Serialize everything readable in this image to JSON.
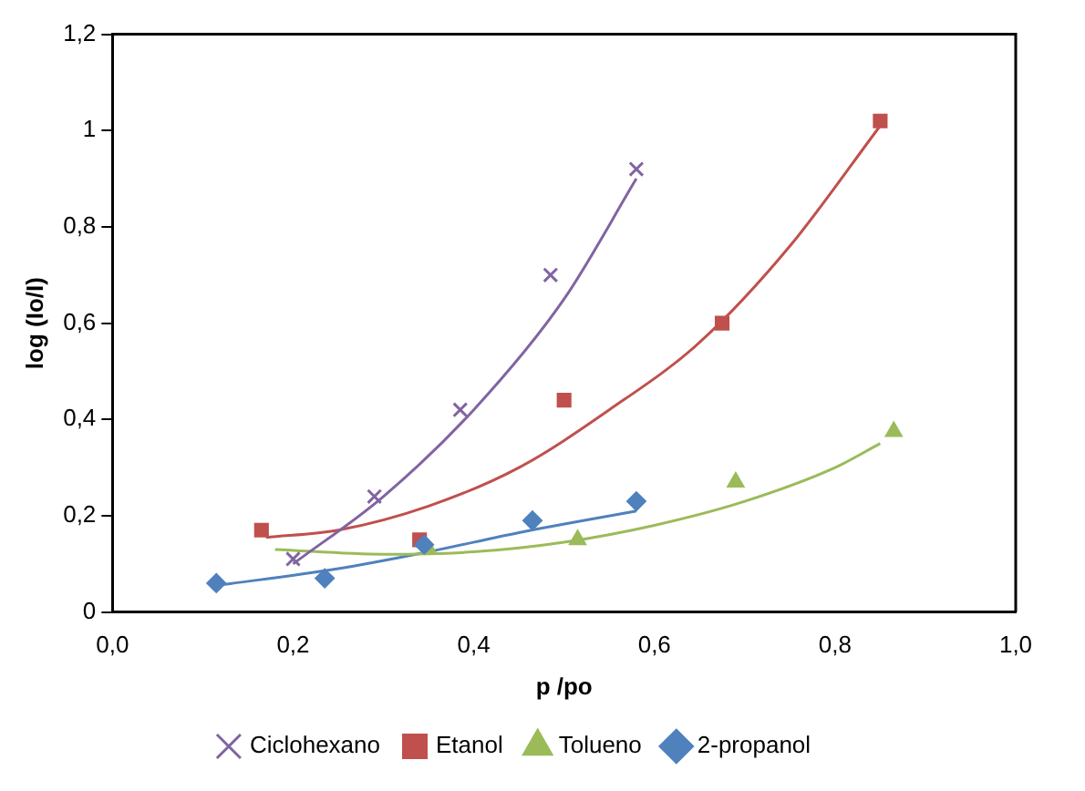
{
  "chart_data": {
    "type": "scatter",
    "xlabel": "p /po",
    "ylabel": "log (Io/I)",
    "xlim": [
      0,
      1
    ],
    "ylim": [
      0,
      1.2
    ],
    "xticks": [
      {
        "value": 0,
        "label": "0,0"
      },
      {
        "value": 0.2,
        "label": "0,2"
      },
      {
        "value": 0.4,
        "label": "0,4"
      },
      {
        "value": 0.6,
        "label": "0,6"
      },
      {
        "value": 0.8,
        "label": "0,8"
      },
      {
        "value": 1,
        "label": "1,0"
      }
    ],
    "yticks": [
      0,
      {
        "value": 0.2,
        "label": "0,2"
      },
      {
        "value": 0.4,
        "label": "0,4"
      },
      {
        "value": 0.6,
        "label": "0,6"
      },
      {
        "value": 0.8,
        "label": "0,8"
      },
      1,
      {
        "value": 1.2,
        "label": "1,2"
      }
    ],
    "grid": false,
    "legend": "bottom",
    "series": [
      {
        "name": "Ciclohexano",
        "color": "#8064a2",
        "marker": "cross",
        "x": [
          0.2,
          0.29,
          0.385,
          0.485,
          0.58
        ],
        "values": [
          0.11,
          0.24,
          0.42,
          0.7,
          0.92
        ]
      },
      {
        "name": "Etanol",
        "color": "#c0504d",
        "marker": "square",
        "x": [
          0.165,
          0.34,
          0.5,
          0.675,
          0.85
        ],
        "values": [
          0.17,
          0.15,
          0.44,
          0.6,
          1.02
        ]
      },
      {
        "name": "Tolueno",
        "color": "#9bbb59",
        "marker": "triangle",
        "x": [
          0.35,
          0.515,
          0.69,
          0.865
        ],
        "values": [
          0.13,
          0.15,
          0.27,
          0.375
        ]
      },
      {
        "name": "2-propanol",
        "color": "#4f81bd",
        "marker": "diamond",
        "x": [
          0.115,
          0.235,
          0.345,
          0.465,
          0.58
        ],
        "values": [
          0.06,
          0.07,
          0.14,
          0.19,
          0.23
        ]
      },
      {
        "type": "line",
        "color": "#8064a2",
        "marker": "none",
        "x": [
          0.2,
          0.3,
          0.4,
          0.5,
          0.58
        ],
        "values": [
          0.1,
          0.24,
          0.42,
          0.65,
          0.9
        ]
      },
      {
        "type": "line",
        "color": "#c0504d",
        "marker": "none",
        "x": [
          0.17,
          0.25,
          0.35,
          0.45,
          0.55,
          0.65,
          0.75,
          0.85
        ],
        "values": [
          0.155,
          0.17,
          0.22,
          0.3,
          0.42,
          0.56,
          0.76,
          1.01
        ]
      },
      {
        "type": "line",
        "color": "#9bbb59",
        "marker": "none",
        "x": [
          0.18,
          0.3,
          0.4,
          0.5,
          0.6,
          0.7,
          0.8,
          0.85
        ],
        "values": [
          0.13,
          0.12,
          0.125,
          0.145,
          0.18,
          0.23,
          0.3,
          0.35
        ]
      },
      {
        "type": "line",
        "color": "#4f81bd",
        "marker": "none",
        "x": [
          0.115,
          0.25,
          0.35,
          0.45,
          0.58
        ],
        "values": [
          0.055,
          0.09,
          0.125,
          0.165,
          0.21
        ]
      }
    ]
  }
}
